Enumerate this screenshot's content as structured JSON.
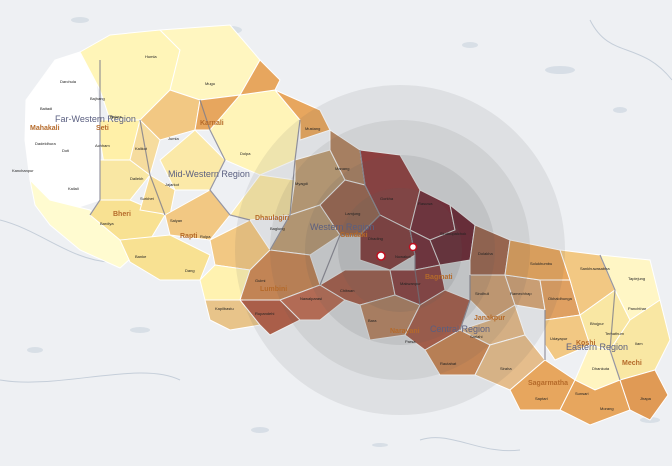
{
  "colors": {
    "background": "#eef0f3",
    "water": "#bcc9d9",
    "shake_ring": "#5c5c5c",
    "border": "#ffffff",
    "district_border": "#7d7d8c",
    "scale": [
      "#fffbd0",
      "#f9e7a3",
      "#f2c883",
      "#e7a65e",
      "#cf8a55",
      "#b45f48",
      "#9a3a3a",
      "#7c1f2f"
    ]
  },
  "regions": [
    {
      "id": "far-western",
      "label": "Far-Western Region"
    },
    {
      "id": "mid-western",
      "label": "Mid-Western Region"
    },
    {
      "id": "western",
      "label": "Western Region"
    },
    {
      "id": "central",
      "label": "Central Region"
    },
    {
      "id": "eastern",
      "label": "Eastern Region"
    }
  ],
  "zones": [
    {
      "id": "mahakali",
      "label": "Mahakali"
    },
    {
      "id": "seti",
      "label": "Seti"
    },
    {
      "id": "karnali",
      "label": "Karnali"
    },
    {
      "id": "bheri",
      "label": "Bheri"
    },
    {
      "id": "rapti",
      "label": "Rapti"
    },
    {
      "id": "dhaulagiri",
      "label": "Dhaulagiri"
    },
    {
      "id": "gandaki",
      "label": "Gandaki"
    },
    {
      "id": "lumbini",
      "label": "Lumbini"
    },
    {
      "id": "bagmati",
      "label": "Bagmati"
    },
    {
      "id": "narayani",
      "label": "Narayani"
    },
    {
      "id": "janakpur",
      "label": "Janakpur"
    },
    {
      "id": "sagarmatha",
      "label": "Sagarmatha"
    },
    {
      "id": "koshi",
      "label": "Koshi"
    },
    {
      "id": "mechi",
      "label": "Mechi"
    }
  ],
  "districts": [
    "Humla",
    "Darchula",
    "Bajhang",
    "Baitadi",
    "Bajura",
    "Dadeldhura",
    "Doti",
    "Achham",
    "Kanchanpur",
    "Kailali",
    "Mugu",
    "Kalikot",
    "Jumla",
    "Dolpa",
    "Jajarkot",
    "Dailekh",
    "Surkhet",
    "Bardiya",
    "Banke",
    "Salyan",
    "Rolpa",
    "Dang",
    "Mustang",
    "Myagdi",
    "Baglung",
    "Manang",
    "Lamjung",
    "Gorkha",
    "Gulmi",
    "Kapilbastu",
    "Rupandehi",
    "Nawalparasi",
    "Chitwan",
    "Dhading",
    "Nuwakot",
    "Rasuwa",
    "Sindhupalchok",
    "Dolakha",
    "Makwanpur",
    "Bara",
    "Parsa",
    "Rautahat",
    "Sarlahi",
    "Sindhuli",
    "Ramechhap",
    "Okhaldhunga",
    "Solukhumbu",
    "Udayapur",
    "Siraha",
    "Saptari",
    "Sunsari",
    "Morang",
    "Jhapa",
    "Ilam",
    "Panchthar",
    "Taplejung",
    "Terhathum",
    "Dhankuta",
    "Bhojpur",
    "Sankhuwasabha"
  ]
}
